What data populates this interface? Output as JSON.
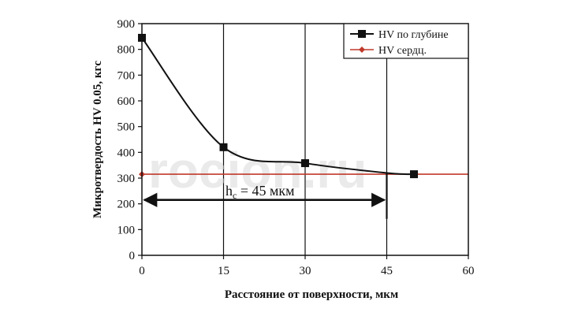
{
  "chart_data": {
    "type": "line",
    "title": "",
    "xlabel": "Расстояние от поверхности, мкм",
    "ylabel": "Микротвердость HV 0.05, кгс",
    "xlim": [
      0,
      60
    ],
    "ylim": [
      0,
      900
    ],
    "xticks": [
      0,
      15,
      30,
      45,
      60
    ],
    "yticks": [
      0,
      100,
      200,
      300,
      400,
      500,
      600,
      700,
      800,
      900
    ],
    "grid": "vertical",
    "legend_position": "top-right",
    "series": [
      {
        "name": "HV по глубине",
        "color": "#111111",
        "marker": "square",
        "x": [
          0,
          15,
          30,
          45,
          50
        ],
        "y": [
          845,
          420,
          358,
          320,
          315
        ]
      },
      {
        "name": "HV сердц.",
        "color": "#c0392b",
        "marker": "diamond",
        "x": [
          0,
          60
        ],
        "y": [
          315,
          315
        ]
      }
    ],
    "annotations": [
      {
        "text_main": "h",
        "text_sub": "c",
        "text_rest": " = 45 мкм"
      }
    ],
    "dimension_arrow": {
      "x_from": 0,
      "x_to": 45,
      "y": 160,
      "drop_from_y": 320
    }
  },
  "watermark": "rocion.ru"
}
